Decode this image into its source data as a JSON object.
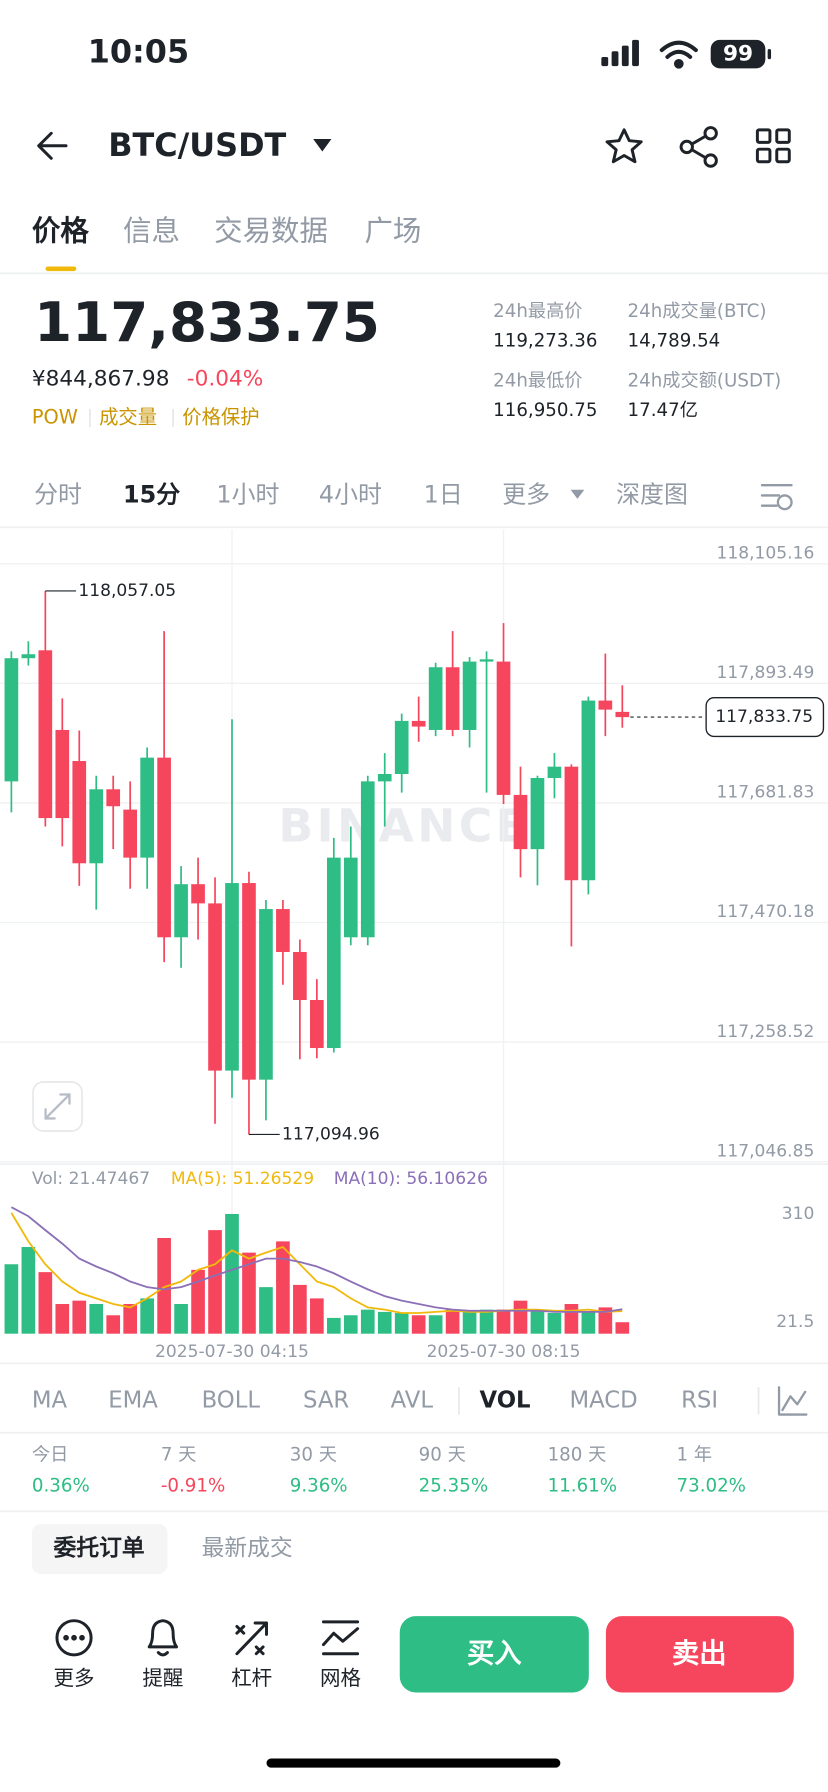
{
  "status_bar": {
    "time": "10:05",
    "battery": "99"
  },
  "header": {
    "pair": "BTC/USDT"
  },
  "tabs": [
    "价格",
    "信息",
    "交易数据",
    "广场"
  ],
  "price": {
    "last": "117,833.75",
    "cny": "¥844,867.98",
    "change": "-0.04%",
    "tags": [
      "POW",
      "成交量",
      "价格保护"
    ]
  },
  "stats": [
    {
      "label": "24h最高价",
      "value": "119,273.36"
    },
    {
      "label": "24h成交量(BTC)",
      "value": "14,789.54"
    },
    {
      "label": "24h最低价",
      "value": "116,950.75"
    },
    {
      "label": "24h成交额(USDT)",
      "value": "17.47亿"
    }
  ],
  "intervals": [
    "分时",
    "15分",
    "1小时",
    "4小时",
    "1日",
    "更多",
    "深度图"
  ],
  "chart_data": {
    "type": "candlestick",
    "categories": [
      null,
      null,
      null,
      null,
      null,
      null,
      null,
      null,
      null,
      null,
      null,
      null,
      null,
      "2025-07-30 04:15",
      null,
      null,
      null,
      null,
      null,
      null,
      null,
      null,
      null,
      null,
      null,
      null,
      null,
      null,
      null,
      "2025-07-30 08:15",
      null,
      null,
      null,
      null,
      null,
      null,
      null
    ],
    "open": [
      117720,
      117938,
      117952,
      117811,
      117756,
      117575,
      117706,
      117670,
      117585,
      117762,
      117444,
      117538,
      117504,
      117208,
      117540,
      117192,
      117494,
      117418,
      117333,
      117248,
      117444,
      117444,
      117720,
      117733,
      117827,
      117811,
      117922,
      117811,
      117932,
      117932,
      117696,
      117600,
      117726,
      117746,
      117545,
      117863,
      117843
    ],
    "high": [
      117950,
      117968,
      118057.05,
      117867,
      117810,
      117730,
      117730,
      117720,
      117780,
      117986,
      117570,
      117585,
      117550,
      117830,
      117560,
      117510,
      117510,
      117440,
      117370,
      117620,
      117640,
      117730,
      117770,
      117840,
      117870,
      117930,
      117986,
      117940,
      117950,
      118000,
      117746,
      117730,
      117770,
      117750,
      117870,
      117946,
      117890
    ],
    "low": [
      117665,
      117925,
      117640,
      117605,
      117535,
      117493,
      117600,
      117530,
      117530,
      117400,
      117390,
      117440,
      117114,
      117160,
      117094.96,
      117120,
      117360,
      117228,
      117230,
      117240,
      117430,
      117430,
      117640,
      117700,
      117790,
      117800,
      117800,
      117780,
      117700,
      117680,
      117550,
      117536,
      117690,
      117428,
      117520,
      117800,
      117815
    ],
    "close": [
      117938,
      117945,
      117655,
      117655,
      117575,
      117706,
      117676,
      117585,
      117762,
      117444,
      117538,
      117504,
      117208,
      117540,
      117192,
      117494,
      117418,
      117333,
      117248,
      117585,
      117585,
      117720,
      117733,
      117827,
      117817,
      117922,
      117811,
      117932,
      117936,
      117696,
      117600,
      117726,
      117746,
      117545,
      117863,
      117847,
      117833.75
    ],
    "up_color": "#2ebd85",
    "down_color": "#f6465d",
    "ylim": [
      117026.6,
      118149.5
    ],
    "yticks": [
      {
        "value": 118105.16,
        "label": "118,105.16"
      },
      {
        "value": 117893.49,
        "label": "117,893.49"
      },
      {
        "value": 117681.83,
        "label": "117,681.83"
      },
      {
        "value": 117470.18,
        "label": "117,470.18"
      },
      {
        "value": 117258.52,
        "label": "117,258.52"
      },
      {
        "value": 117046.85,
        "label": "117,046.85"
      }
    ],
    "grid": true,
    "high_label": "118,057.05",
    "low_label": "117,094.96",
    "last_price_label": "117,833.75",
    "watermark": "BINANCE",
    "volume": {
      "values": [
        176,
        222,
        155,
        70,
        79,
        70,
        40,
        70,
        85,
        246,
        70,
        161,
        267,
        310,
        207,
        115,
        237,
        121,
        85,
        33,
        40,
        55,
        49,
        46,
        40,
        40,
        55,
        49,
        55,
        55,
        79,
        55,
        46,
        70,
        49,
        61,
        21.47467
      ],
      "ma5": [
        313,
        237,
        176,
        130,
        100,
        85,
        70,
        61,
        85,
        115,
        130,
        161,
        176,
        213,
        191,
        207,
        222,
        176,
        130,
        115,
        85,
        61,
        55,
        46,
        46,
        49,
        52,
        49,
        49,
        52,
        55,
        55,
        52,
        52,
        55,
        49,
        51.26529
      ],
      "ma10": [
        328,
        304,
        267,
        231,
        191,
        170,
        152,
        130,
        115,
        109,
        115,
        130,
        146,
        161,
        176,
        191,
        191,
        182,
        170,
        152,
        130,
        109,
        91,
        79,
        70,
        61,
        55,
        52,
        52,
        52,
        52,
        52,
        49,
        49,
        49,
        49,
        56.10626
      ],
      "ma5_color": "#f0b90b",
      "ma10_color": "#8b6fb7",
      "vol_label": "Vol: 21.47467",
      "ma5_label": "MA(5): 51.26529",
      "ma10_label": "MA(10): 56.10626",
      "ylim": [
        0,
        419
      ],
      "yticks": [
        310,
        21.5
      ]
    }
  },
  "indicators": [
    "MA",
    "EMA",
    "BOLL",
    "SAR",
    "AVL",
    "VOL",
    "MACD",
    "RSI"
  ],
  "performance": [
    {
      "period": "今日",
      "change": "0.36%"
    },
    {
      "period": "7 天",
      "change": "-0.91%"
    },
    {
      "period": "30 天",
      "change": "9.36%"
    },
    {
      "period": "90 天",
      "change": "25.35%"
    },
    {
      "period": "180 天",
      "change": "11.61%"
    },
    {
      "period": "1 年",
      "change": "73.02%"
    }
  ],
  "order_tabs": [
    "委托订单",
    "最新成交"
  ],
  "bottom_bar": {
    "actions": [
      "更多",
      "提醒",
      "杠杆",
      "网格"
    ],
    "buy": "买入",
    "sell": "卖出"
  }
}
